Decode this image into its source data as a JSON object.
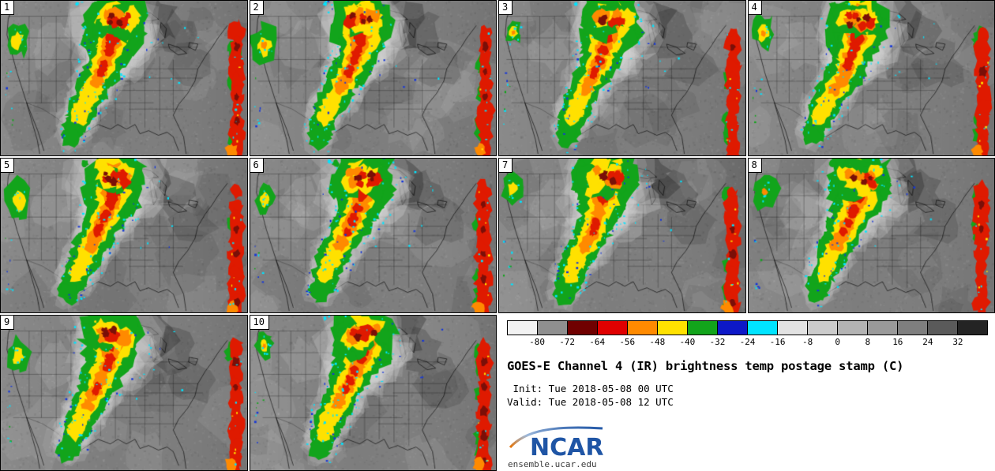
{
  "panels": {
    "members": [
      {
        "id": 1
      },
      {
        "id": 2
      },
      {
        "id": 3
      },
      {
        "id": 4
      },
      {
        "id": 5
      },
      {
        "id": 6
      },
      {
        "id": 7
      },
      {
        "id": 8
      },
      {
        "id": 9
      },
      {
        "id": 10
      }
    ]
  },
  "legend": {
    "colorbar": {
      "units": "C",
      "ticks": [
        "-80",
        "-72",
        "-64",
        "-56",
        "-48",
        "-40",
        "-32",
        "-24",
        "-16",
        "-8",
        "0",
        "8",
        "16",
        "24",
        "32"
      ],
      "segment_colors": [
        "#f2f2f2",
        "#8f8f8f",
        "#700000",
        "#e00000",
        "#ff8a00",
        "#ffe100",
        "#12a41b",
        "#0d18c8",
        "#00e4ff",
        "#e2e2e2",
        "#cbcbcb",
        "#b3b3b3",
        "#9a9a9a",
        "#7f7f7f",
        "#5a5a5a",
        "#242424"
      ]
    },
    "title": "GOES-E Channel 4 (IR) brightness temp postage stamp (C)",
    "init_line": " Init: Tue 2018-05-08 00 UTC",
    "valid_line": "Valid: Tue 2018-05-08 12 UTC",
    "logo_text": "NCAR",
    "site": "ensemble.ucar.edu",
    "logo_color": "#1f55a5"
  },
  "map_palette": {
    "base_gray": "#7d7d7d",
    "cyan": "#00e4ff",
    "blue": "#1536d8",
    "green": "#12a41b",
    "yellow": "#ffe100",
    "orange": "#ff8a00",
    "red": "#df1a00",
    "dark_red": "#7a0f08",
    "line_color": "#000000"
  }
}
